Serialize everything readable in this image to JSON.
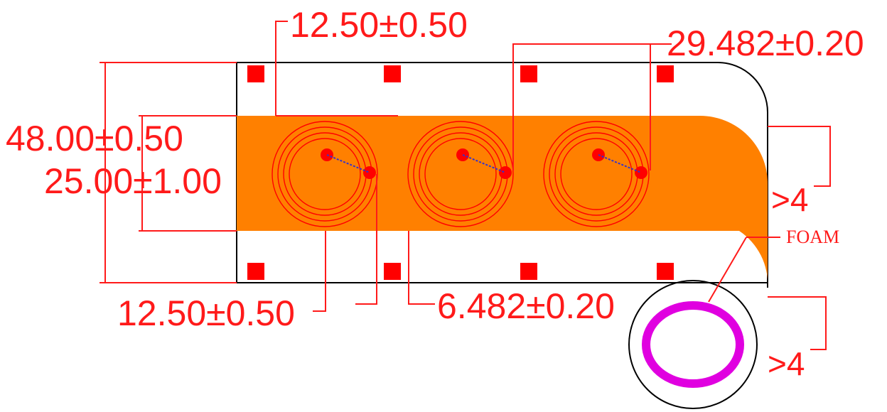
{
  "dimensions": {
    "top_pitch": "12.50±0.50",
    "coil_pitch": "29.482±0.20",
    "overall_height": "48.00±0.50",
    "strip_height": "25.00±1.00",
    "bottom_pitch": "12.50±0.50",
    "coil_gap": "6.482±0.20",
    "clearance_upper": ">4",
    "clearance_lower": ">4"
  },
  "labels": {
    "foam": "FOAM"
  },
  "colors": {
    "dimension": "#ff1a1a",
    "strip": "#ff8000",
    "coil": "#ff0000",
    "foam_ring": "#e000e0",
    "outline": "#000000"
  }
}
